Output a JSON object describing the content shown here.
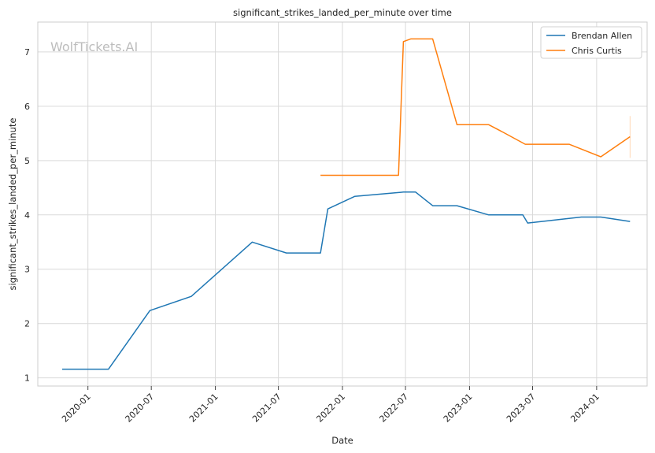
{
  "chart_data": {
    "type": "line",
    "title": "significant_strikes_landed_per_minute over time",
    "xlabel": "Date",
    "ylabel": "significant_strikes_landed_per_minute",
    "watermark": "WolfTickets.AI",
    "x_axis_type": "date",
    "xlim": [
      "2019-08-10",
      "2024-05-25"
    ],
    "ylim": [
      0.85,
      7.55
    ],
    "x_ticks": [
      "2020-01-01",
      "2020-07-01",
      "2021-01-01",
      "2021-07-01",
      "2022-01-01",
      "2022-07-01",
      "2023-01-01",
      "2023-07-01",
      "2024-01-01"
    ],
    "x_tick_labels": [
      "2020-01",
      "2020-07",
      "2021-01",
      "2021-07",
      "2022-01",
      "2022-07",
      "2023-01",
      "2023-07",
      "2024-01"
    ],
    "y_ticks": [
      1,
      2,
      3,
      4,
      5,
      6,
      7
    ],
    "y_tick_labels": [
      "1",
      "2",
      "3",
      "4",
      "5",
      "6",
      "7"
    ],
    "grid": true,
    "legend_position": "top-right",
    "series": [
      {
        "name": "Brendan Allen",
        "color": "#1f77b4",
        "points": [
          [
            "2019-10-19",
            1.16
          ],
          [
            "2020-02-29",
            1.16
          ],
          [
            "2020-06-27",
            2.24
          ],
          [
            "2020-10-24",
            2.5
          ],
          [
            "2021-04-17",
            3.5
          ],
          [
            "2021-07-24",
            3.3
          ],
          [
            "2021-10-30",
            3.3
          ],
          [
            "2021-11-20",
            4.11
          ],
          [
            "2022-02-05",
            4.34
          ],
          [
            "2022-06-25",
            4.42
          ],
          [
            "2022-07-30",
            4.42
          ],
          [
            "2022-09-17",
            4.17
          ],
          [
            "2022-11-26",
            4.17
          ],
          [
            "2023-02-25",
            4.0
          ],
          [
            "2023-06-03",
            4.0
          ],
          [
            "2023-06-17",
            3.85
          ],
          [
            "2023-11-18",
            3.96
          ],
          [
            "2024-01-13",
            3.96
          ],
          [
            "2024-04-06",
            3.88
          ]
        ]
      },
      {
        "name": "Chris Curtis",
        "color": "#ff7f0e",
        "points": [
          [
            "2021-10-30",
            4.73
          ],
          [
            "2022-06-11",
            4.73
          ],
          [
            "2022-06-25",
            7.19
          ],
          [
            "2022-07-16",
            7.24
          ],
          [
            "2022-09-17",
            7.24
          ],
          [
            "2022-11-26",
            5.66
          ],
          [
            "2023-02-25",
            5.66
          ],
          [
            "2023-04-08",
            5.52
          ],
          [
            "2023-06-10",
            5.3
          ],
          [
            "2023-10-14",
            5.3
          ],
          [
            "2024-01-13",
            5.07
          ],
          [
            "2024-04-06",
            5.44
          ]
        ]
      }
    ],
    "error_band": {
      "series": "Chris Curtis",
      "x": "2024-04-06",
      "low": 5.05,
      "high": 5.82
    }
  }
}
